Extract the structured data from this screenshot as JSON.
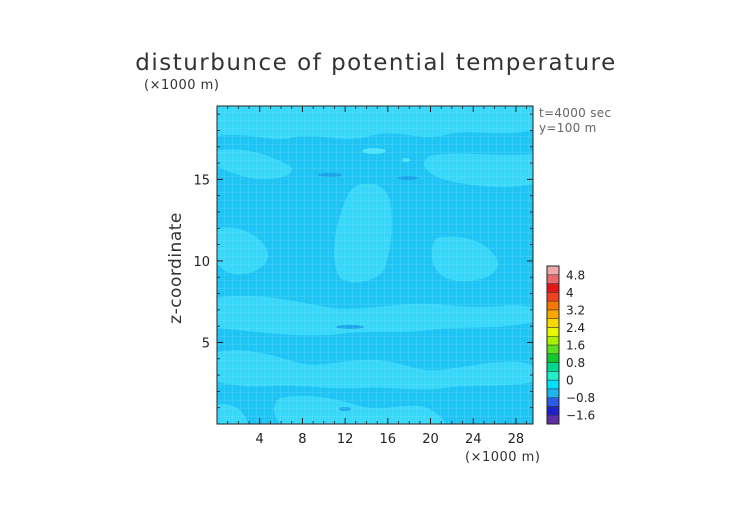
{
  "chart_data": {
    "type": "heatmap",
    "title": "disturbunce of potential temperature",
    "ylabel": "z-coordinate",
    "x_unit_label": "(×1000 m)",
    "y_unit_label": "(×1000 m)",
    "xlim": [
      0,
      29.6
    ],
    "ylim": [
      0,
      19.5
    ],
    "xticks": [
      4,
      8,
      12,
      16,
      20,
      24,
      28
    ],
    "yticks": [
      5,
      10,
      15
    ],
    "info_lines": [
      "t=4000 sec",
      "y=100 m"
    ],
    "colorbar": {
      "levels": [
        -2.0,
        -1.6,
        -1.2,
        -0.8,
        -0.4,
        0,
        0.4,
        0.8,
        1.2,
        1.6,
        2.0,
        2.4,
        2.8,
        3.2,
        3.6,
        4.0,
        4.4,
        4.8,
        5.2
      ],
      "labels": [
        "−1.6",
        "−0.8",
        "0",
        "0.8",
        "1.6",
        "2.4",
        "3.2",
        "4",
        "4.8"
      ],
      "label_values": [
        -1.6,
        -0.8,
        0,
        0.8,
        1.6,
        2.4,
        3.2,
        4.0,
        4.8
      ],
      "colors": [
        "#5a2fa8",
        "#2020c8",
        "#2a5ae8",
        "#20b4f0",
        "#00e0ff",
        "#20f0c8",
        "#00d890",
        "#10c830",
        "#58e020",
        "#a8f000",
        "#e8f800",
        "#f8d800",
        "#f8a800",
        "#f87800",
        "#f04020",
        "#e01818",
        "#e86a6a",
        "#f0a8a8"
      ]
    },
    "field": {
      "background_range": "-0.4 to 0",
      "regions_range": "0 to 0.4"
    }
  }
}
